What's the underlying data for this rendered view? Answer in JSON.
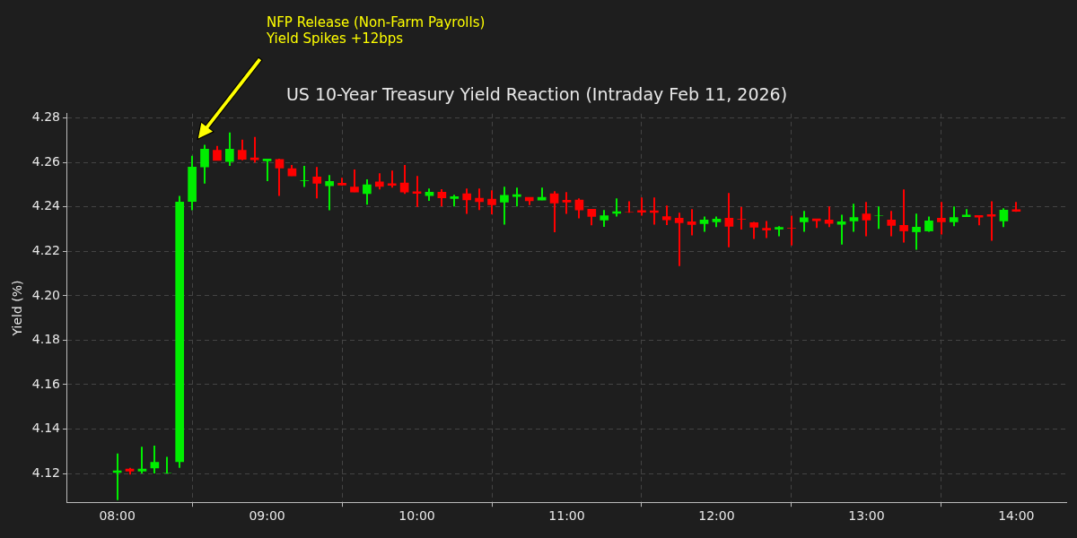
{
  "chart_data": {
    "type": "candlestick",
    "title": "US 10-Year Treasury Yield Reaction (Intraday Feb 11, 2026)",
    "ylabel": "Yield (%)",
    "annotations": [
      "NFP Release (Non-Farm Payrolls)\nYield Spikes +12bps"
    ],
    "x": [
      "2026-02-11T08:00",
      "2026-02-11T08:05",
      "2026-02-11T08:10",
      "2026-02-11T08:15",
      "2026-02-11T08:20",
      "2026-02-11T08:25",
      "2026-02-11T08:30",
      "2026-02-11T08:35",
      "2026-02-11T08:40",
      "2026-02-11T08:45",
      "2026-02-11T08:50",
      "2026-02-11T08:55",
      "2026-02-11T09:00",
      "2026-02-11T09:05",
      "2026-02-11T09:10",
      "2026-02-11T09:15",
      "2026-02-11T09:20",
      "2026-02-11T09:25",
      "2026-02-11T09:30",
      "2026-02-11T09:35",
      "2026-02-11T09:40",
      "2026-02-11T09:45",
      "2026-02-11T09:50",
      "2026-02-11T09:55",
      "2026-02-11T10:00",
      "2026-02-11T10:05",
      "2026-02-11T10:10",
      "2026-02-11T10:15",
      "2026-02-11T10:20",
      "2026-02-11T10:25",
      "2026-02-11T10:30",
      "2026-02-11T10:35",
      "2026-02-11T10:40",
      "2026-02-11T10:45",
      "2026-02-11T10:50",
      "2026-02-11T10:55",
      "2026-02-11T11:00",
      "2026-02-11T11:05",
      "2026-02-11T11:10",
      "2026-02-11T11:15",
      "2026-02-11T11:20",
      "2026-02-11T11:25",
      "2026-02-11T11:30",
      "2026-02-11T11:35",
      "2026-02-11T11:40",
      "2026-02-11T11:45",
      "2026-02-11T11:50",
      "2026-02-11T11:55",
      "2026-02-11T12:00",
      "2026-02-11T12:05",
      "2026-02-11T12:10",
      "2026-02-11T12:15",
      "2026-02-11T12:20",
      "2026-02-11T12:25",
      "2026-02-11T12:30",
      "2026-02-11T12:35",
      "2026-02-11T12:40",
      "2026-02-11T12:45",
      "2026-02-11T12:50",
      "2026-02-11T12:55",
      "2026-02-11T13:00",
      "2026-02-11T13:05",
      "2026-02-11T13:10",
      "2026-02-11T13:15",
      "2026-02-11T13:20",
      "2026-02-11T13:25",
      "2026-02-11T13:30",
      "2026-02-11T13:35",
      "2026-02-11T13:40",
      "2026-02-11T13:45",
      "2026-02-11T13:50",
      "2026-02-11T13:55",
      "2026-02-11T14:00"
    ],
    "ohlc": [
      [
        4.1204,
        4.129,
        4.108,
        4.1212
      ],
      [
        4.122,
        4.1225,
        4.1195,
        4.121
      ],
      [
        4.121,
        4.132,
        4.12,
        4.122
      ],
      [
        4.1225,
        4.1325,
        4.12,
        4.125
      ],
      [
        4.1202,
        4.1275,
        4.12,
        4.1202
      ],
      [
        4.1253,
        4.245,
        4.1225,
        4.2422
      ],
      [
        4.2425,
        4.263,
        4.2385,
        4.258
      ],
      [
        4.258,
        4.268,
        4.2505,
        4.266
      ],
      [
        4.2655,
        4.2675,
        4.261,
        4.261
      ],
      [
        4.2605,
        4.2735,
        4.2585,
        4.266
      ],
      [
        4.2655,
        4.2703,
        4.261,
        4.2615
      ],
      [
        4.2621,
        4.2715,
        4.26,
        4.2613
      ],
      [
        4.2608,
        4.2616,
        4.2516,
        4.2616
      ],
      [
        4.2614,
        4.2617,
        4.245,
        4.2575
      ],
      [
        4.2573,
        4.2589,
        4.254,
        4.254
      ],
      [
        4.2518,
        4.2585,
        4.249,
        4.2518
      ],
      [
        4.2535,
        4.258,
        4.2439,
        4.2507
      ],
      [
        4.2495,
        4.2544,
        4.2385,
        4.2515
      ],
      [
        4.2507,
        4.2532,
        4.2496,
        4.2499
      ],
      [
        4.249,
        4.2569,
        4.2467,
        4.2467
      ],
      [
        4.246,
        4.2524,
        4.241,
        4.25
      ],
      [
        4.2513,
        4.2552,
        4.2479,
        4.2492
      ],
      [
        4.2505,
        4.2564,
        4.2487,
        4.2497
      ],
      [
        4.2508,
        4.2589,
        4.2459,
        4.2467
      ],
      [
        4.2469,
        4.254,
        4.24,
        4.2461
      ],
      [
        4.2451,
        4.2483,
        4.2428,
        4.2467
      ],
      [
        4.2467,
        4.248,
        4.2402,
        4.2441
      ],
      [
        4.2438,
        4.2455,
        4.2402,
        4.2446
      ],
      [
        4.2459,
        4.2483,
        4.2369,
        4.2432
      ],
      [
        4.2439,
        4.2483,
        4.2386,
        4.2424
      ],
      [
        4.2435,
        4.2475,
        4.2367,
        4.241
      ],
      [
        4.2422,
        4.2491,
        4.2321,
        4.2452
      ],
      [
        4.2447,
        4.2487,
        4.2402,
        4.2455
      ],
      [
        4.2443,
        4.2443,
        4.2408,
        4.2428
      ],
      [
        4.2431,
        4.2487,
        4.2431,
        4.2443
      ],
      [
        4.2459,
        4.2471,
        4.2286,
        4.2418
      ],
      [
        4.243,
        4.2467,
        4.2369,
        4.2422
      ],
      [
        4.2431,
        4.2439,
        4.2349,
        4.2386
      ],
      [
        4.239,
        4.239,
        4.2317,
        4.2357
      ],
      [
        4.2341,
        4.2386,
        4.231,
        4.2361
      ],
      [
        4.2371,
        4.2439,
        4.2357,
        4.2379
      ],
      [
        4.2377,
        4.2426,
        4.2374,
        4.2377
      ],
      [
        4.2384,
        4.2443,
        4.2361,
        4.2376
      ],
      [
        4.2383,
        4.2443,
        4.2321,
        4.2375
      ],
      [
        4.2357,
        4.2406,
        4.2318,
        4.2342
      ],
      [
        4.2349,
        4.2374,
        4.2134,
        4.2329
      ],
      [
        4.2333,
        4.239,
        4.2272,
        4.2321
      ],
      [
        4.2325,
        4.2357,
        4.2288,
        4.2341
      ],
      [
        4.2333,
        4.2357,
        4.2309,
        4.2345
      ],
      [
        4.2349,
        4.2463,
        4.2219,
        4.2313
      ],
      [
        4.2344,
        4.24,
        4.2298,
        4.2344
      ],
      [
        4.2329,
        4.2333,
        4.2256,
        4.2309
      ],
      [
        4.2304,
        4.2337,
        4.226,
        4.2296
      ],
      [
        4.23,
        4.2313,
        4.2268,
        4.2308
      ],
      [
        4.2304,
        4.2361,
        4.2227,
        4.2304
      ],
      [
        4.2333,
        4.2382,
        4.2288,
        4.2351
      ],
      [
        4.2346,
        4.2346,
        4.2305,
        4.2338
      ],
      [
        4.2341,
        4.2402,
        4.2309,
        4.2326
      ],
      [
        4.2322,
        4.2365,
        4.2231,
        4.2333
      ],
      [
        4.2337,
        4.2414,
        4.2288,
        4.2353
      ],
      [
        4.2369,
        4.2422,
        4.2268,
        4.2341
      ],
      [
        4.2361,
        4.2402,
        4.2301,
        4.2361
      ],
      [
        4.2341,
        4.2382,
        4.2268,
        4.2317
      ],
      [
        4.2317,
        4.2479,
        4.224,
        4.2292
      ],
      [
        4.2288,
        4.237,
        4.2207,
        4.2309
      ],
      [
        4.2292,
        4.2357,
        4.2288,
        4.2337
      ],
      [
        4.2349,
        4.2422,
        4.2276,
        4.2333
      ],
      [
        4.2333,
        4.2402,
        4.2313,
        4.2353
      ],
      [
        4.2356,
        4.239,
        4.2356,
        4.2364
      ],
      [
        4.2362,
        4.2362,
        4.2317,
        4.2354
      ],
      [
        4.2366,
        4.2426,
        4.2248,
        4.2358
      ],
      [
        4.2337,
        4.2394,
        4.2309,
        4.2386
      ],
      [
        4.2388,
        4.2422,
        4.2378,
        4.238
      ]
    ],
    "colors": [
      "#00ee00",
      "#ff0000",
      "#00ee00",
      "#00ee00",
      "#00ee00",
      "#00ee00",
      "#00ee00",
      "#00ee00",
      "#ff0000",
      "#00ee00",
      "#ff0000",
      "#ff0000",
      "#00ee00",
      "#ff0000",
      "#ff0000",
      "#00ee00",
      "#ff0000",
      "#00ee00",
      "#ff0000",
      "#ff0000",
      "#00ee00",
      "#ff0000",
      "#ff0000",
      "#ff0000",
      "#ff0000",
      "#00ee00",
      "#ff0000",
      "#00ee00",
      "#ff0000",
      "#ff0000",
      "#ff0000",
      "#00ee00",
      "#00ee00",
      "#ff0000",
      "#00ee00",
      "#ff0000",
      "#ff0000",
      "#ff0000",
      "#ff0000",
      "#00ee00",
      "#00ee00",
      "#ff0000",
      "#ff0000",
      "#ff0000",
      "#ff0000",
      "#ff0000",
      "#ff0000",
      "#00ee00",
      "#00ee00",
      "#ff0000",
      "#ff0000",
      "#ff0000",
      "#ff0000",
      "#00ee00",
      "#ff0000",
      "#00ee00",
      "#ff0000",
      "#ff0000",
      "#00ee00",
      "#00ee00",
      "#ff0000",
      "#00ee00",
      "#ff0000",
      "#ff0000",
      "#00ee00",
      "#00ee00",
      "#ff0000",
      "#00ee00",
      "#00ee00",
      "#ff0000",
      "#ff0000",
      "#00ee00",
      "#ff0000"
    ],
    "xlim": [
      "2026-02-11T07:40",
      "2026-02-11T14:20"
    ],
    "xticks": [
      {
        "value": "2026-02-11T08:00",
        "label": "08:00"
      },
      {
        "value": "2026-02-11T09:00",
        "label": "09:00"
      },
      {
        "value": "2026-02-11T10:00",
        "label": "10:00"
      },
      {
        "value": "2026-02-11T11:00",
        "label": "11:00"
      },
      {
        "value": "2026-02-11T12:00",
        "label": "12:00"
      },
      {
        "value": "2026-02-11T13:00",
        "label": "13:00"
      },
      {
        "value": "2026-02-11T14:00",
        "label": "14:00"
      }
    ],
    "ylim": [
      4.107,
      4.282
    ],
    "yticks": [
      4.12,
      4.14,
      4.16,
      4.18,
      {
        "value": 4.2,
        "label": "4.20"
      },
      4.22,
      4.24,
      4.26,
      4.28
    ],
    "grid": true,
    "legend": false
  }
}
